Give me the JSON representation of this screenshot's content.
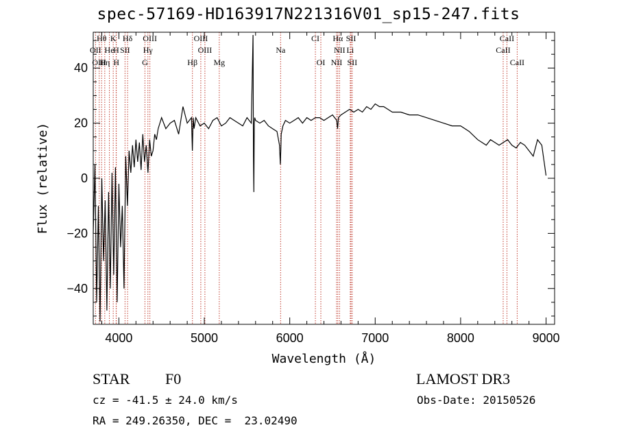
{
  "chart_data": {
    "type": "line",
    "title": "spec-57169-HD163917N221316V01_sp15-247.fits",
    "xlabel": "Wavelength (Å)",
    "ylabel": "Flux (relative)",
    "xlim": [
      3700,
      9100
    ],
    "ylim": [
      -53,
      53
    ],
    "xticks": [
      4000,
      5000,
      6000,
      7000,
      8000,
      9000
    ],
    "yticks": [
      -40,
      -20,
      0,
      20,
      40
    ],
    "grid": false,
    "series": [
      {
        "name": "spectrum",
        "x": [
          3700,
          3720,
          3740,
          3760,
          3780,
          3800,
          3820,
          3840,
          3860,
          3880,
          3900,
          3920,
          3940,
          3960,
          3980,
          4000,
          4020,
          4040,
          4060,
          4080,
          4100,
          4120,
          4140,
          4160,
          4180,
          4200,
          4220,
          4240,
          4260,
          4280,
          4300,
          4320,
          4340,
          4360,
          4380,
          4400,
          4420,
          4440,
          4460,
          4500,
          4550,
          4600,
          4650,
          4700,
          4750,
          4800,
          4850,
          4860,
          4870,
          4880,
          4900,
          4950,
          5000,
          5050,
          5100,
          5150,
          5200,
          5250,
          5300,
          5350,
          5400,
          5450,
          5500,
          5550,
          5570,
          5575,
          5580,
          5585,
          5590,
          5600,
          5650,
          5700,
          5750,
          5800,
          5850,
          5880,
          5890,
          5895,
          5900,
          5920,
          5950,
          6000,
          6050,
          6100,
          6150,
          6200,
          6250,
          6300,
          6350,
          6400,
          6450,
          6500,
          6550,
          6560,
          6565,
          6570,
          6600,
          6650,
          6700,
          6750,
          6800,
          6850,
          6900,
          6950,
          7000,
          7050,
          7100,
          7150,
          7200,
          7300,
          7400,
          7500,
          7600,
          7700,
          7800,
          7900,
          8000,
          8100,
          8200,
          8250,
          8300,
          8350,
          8400,
          8450,
          8500,
          8550,
          8600,
          8650,
          8700,
          8750,
          8800,
          8850,
          8900,
          8950,
          9000
        ],
        "y": [
          -20,
          5,
          -45,
          -10,
          -52,
          0,
          -30,
          -8,
          -48,
          -5,
          -40,
          2,
          -35,
          4,
          -45,
          -2,
          -25,
          -10,
          -40,
          8,
          -10,
          10,
          2,
          12,
          4,
          14,
          6,
          13,
          3,
          16,
          6,
          12,
          2,
          14,
          8,
          10,
          16,
          14,
          18,
          22,
          18,
          20,
          21,
          16,
          26,
          20,
          22,
          10,
          22,
          18,
          22,
          19,
          20,
          18,
          21,
          22,
          19,
          20,
          22,
          21,
          20,
          19,
          22,
          20,
          52,
          8,
          -5,
          20,
          22,
          21,
          20,
          21,
          19,
          18,
          17,
          12,
          5,
          10,
          16,
          19,
          21,
          20,
          21,
          22,
          20,
          22,
          21,
          22,
          22,
          21,
          22,
          23,
          21,
          18,
          20,
          22,
          23,
          24,
          25,
          24,
          25,
          24,
          26,
          25,
          27,
          26,
          26,
          25,
          24,
          24,
          23,
          23,
          22,
          21,
          20,
          19,
          19,
          17,
          14,
          13,
          12,
          14,
          13,
          12,
          13,
          14,
          12,
          11,
          13,
          12,
          10,
          8,
          14,
          12,
          1
        ]
      }
    ],
    "spectral_lines": [
      {
        "label": "Hθ",
        "x": 3798,
        "row": 0
      },
      {
        "label": "K",
        "x": 3934,
        "row": 0
      },
      {
        "label": "Hδ",
        "x": 4102,
        "row": 0
      },
      {
        "label": "OIII",
        "x": 4363,
        "row": 0
      },
      {
        "label": "OIII",
        "x": 4959,
        "row": 0
      },
      {
        "label": "CI",
        "x": 6300,
        "row": 0
      },
      {
        "label": "Hα",
        "x": 6563,
        "row": 0
      },
      {
        "label": "SII",
        "x": 6717,
        "row": 0
      },
      {
        "label": "CaII",
        "x": 8542,
        "row": 0
      },
      {
        "label": "OII",
        "x": 3727,
        "row": 1
      },
      {
        "label": "He",
        "x": 3889,
        "row": 1
      },
      {
        "label": "H",
        "x": 3968,
        "row": 1
      },
      {
        "label": "SII",
        "x": 4072,
        "row": 1
      },
      {
        "label": "Hγ",
        "x": 4340,
        "row": 1
      },
      {
        "label": "OIII",
        "x": 5007,
        "row": 1
      },
      {
        "label": "Na",
        "x": 5893,
        "row": 1
      },
      {
        "label": "NII",
        "x": 6583,
        "row": 1
      },
      {
        "label": "Li",
        "x": 6708,
        "row": 1
      },
      {
        "label": "CaII",
        "x": 8498,
        "row": 1
      },
      {
        "label": "OIII",
        "x": 3770,
        "row": 2
      },
      {
        "label": "Hη",
        "x": 3835,
        "row": 2
      },
      {
        "label": "H",
        "x": 3970,
        "row": 2
      },
      {
        "label": "G",
        "x": 4305,
        "row": 2
      },
      {
        "label": "Hβ",
        "x": 4861,
        "row": 2
      },
      {
        "label": "Mg",
        "x": 5175,
        "row": 2
      },
      {
        "label": "OI",
        "x": 6364,
        "row": 2
      },
      {
        "label": "NII",
        "x": 6548,
        "row": 2
      },
      {
        "label": "SII",
        "x": 6731,
        "row": 2
      },
      {
        "label": "CaII",
        "x": 8662,
        "row": 2
      }
    ]
  },
  "info": {
    "object_class": "STAR",
    "subclass": "F0",
    "survey": "LAMOST DR3",
    "redshift": "cz = -41.5 ± 24.0 km/s",
    "obs_date": "Obs-Date: 20150526",
    "coords": "RA = 249.26350, DEC =  23.02490"
  }
}
